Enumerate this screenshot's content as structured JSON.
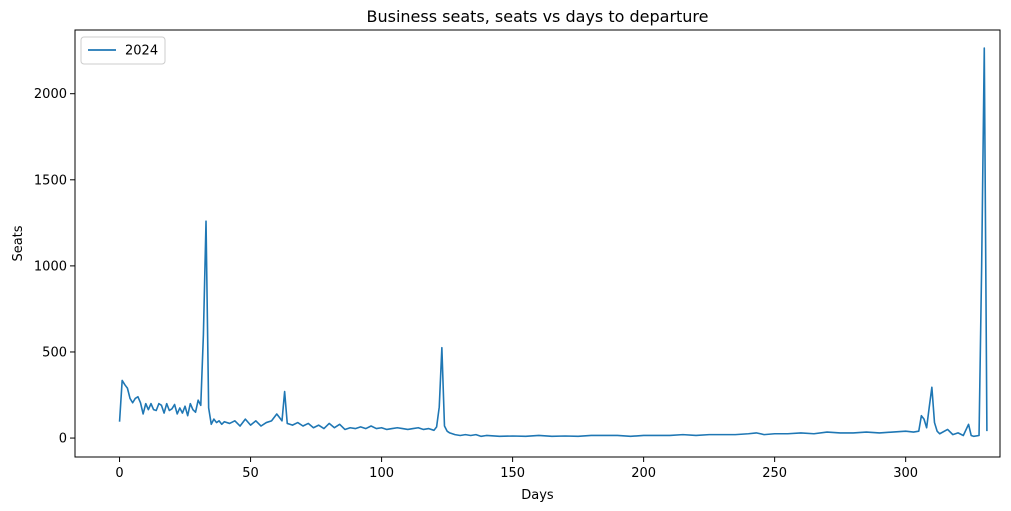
{
  "chart_data": {
    "type": "line",
    "title": "Business seats, seats vs days to departure",
    "xlabel": "Days",
    "ylabel": "Seats",
    "xlim": [
      -17,
      336
    ],
    "ylim": [
      -110,
      2370
    ],
    "xticks": [
      0,
      50,
      100,
      150,
      200,
      250,
      300
    ],
    "yticks": [
      0,
      500,
      1000,
      1500,
      2000
    ],
    "grid": false,
    "legend_position": "top-left",
    "series": [
      {
        "name": "2024",
        "color": "#1f77b4",
        "x": [
          0,
          1,
          2,
          3,
          4,
          5,
          6,
          7,
          8,
          9,
          10,
          11,
          12,
          13,
          14,
          15,
          16,
          17,
          18,
          19,
          20,
          21,
          22,
          23,
          24,
          25,
          26,
          27,
          28,
          29,
          30,
          31,
          32,
          33,
          34,
          35,
          36,
          37,
          38,
          39,
          40,
          42,
          44,
          46,
          48,
          50,
          52,
          54,
          56,
          58,
          60,
          61,
          62,
          63,
          64,
          65,
          66,
          68,
          70,
          72,
          74,
          76,
          78,
          80,
          82,
          84,
          86,
          88,
          90,
          92,
          94,
          96,
          98,
          100,
          102,
          104,
          106,
          108,
          110,
          112,
          114,
          116,
          118,
          120,
          121,
          122,
          123,
          124,
          125,
          126,
          127,
          128,
          130,
          132,
          134,
          136,
          138,
          140,
          145,
          150,
          155,
          160,
          165,
          170,
          175,
          180,
          185,
          190,
          195,
          200,
          205,
          210,
          215,
          220,
          225,
          230,
          235,
          240,
          243,
          246,
          250,
          255,
          260,
          265,
          270,
          275,
          280,
          285,
          290,
          295,
          300,
          303,
          305,
          306,
          307,
          308,
          309,
          310,
          311,
          312,
          313,
          316,
          318,
          320,
          322,
          324,
          325,
          326,
          328,
          329,
          330,
          331
        ],
        "y": [
          95,
          335,
          310,
          290,
          230,
          205,
          230,
          240,
          205,
          140,
          200,
          165,
          200,
          165,
          160,
          200,
          190,
          145,
          200,
          160,
          170,
          195,
          140,
          175,
          145,
          185,
          130,
          200,
          165,
          150,
          220,
          190,
          600,
          1260,
          175,
          80,
          110,
          90,
          100,
          80,
          95,
          85,
          100,
          70,
          110,
          75,
          100,
          70,
          90,
          100,
          140,
          120,
          100,
          270,
          85,
          80,
          75,
          90,
          70,
          85,
          60,
          75,
          55,
          85,
          60,
          80,
          50,
          60,
          55,
          65,
          55,
          70,
          55,
          60,
          50,
          55,
          60,
          55,
          50,
          55,
          60,
          50,
          55,
          45,
          65,
          180,
          525,
          70,
          40,
          30,
          25,
          20,
          15,
          20,
          15,
          20,
          10,
          15,
          10,
          12,
          10,
          15,
          10,
          12,
          10,
          15,
          15,
          15,
          10,
          15,
          15,
          15,
          20,
          15,
          20,
          20,
          20,
          25,
          30,
          20,
          25,
          25,
          30,
          25,
          35,
          30,
          30,
          35,
          30,
          35,
          40,
          35,
          40,
          130,
          110,
          60,
          180,
          295,
          90,
          40,
          25,
          50,
          20,
          30,
          15,
          80,
          15,
          10,
          15,
          1000,
          2265,
          40
        ]
      }
    ]
  }
}
